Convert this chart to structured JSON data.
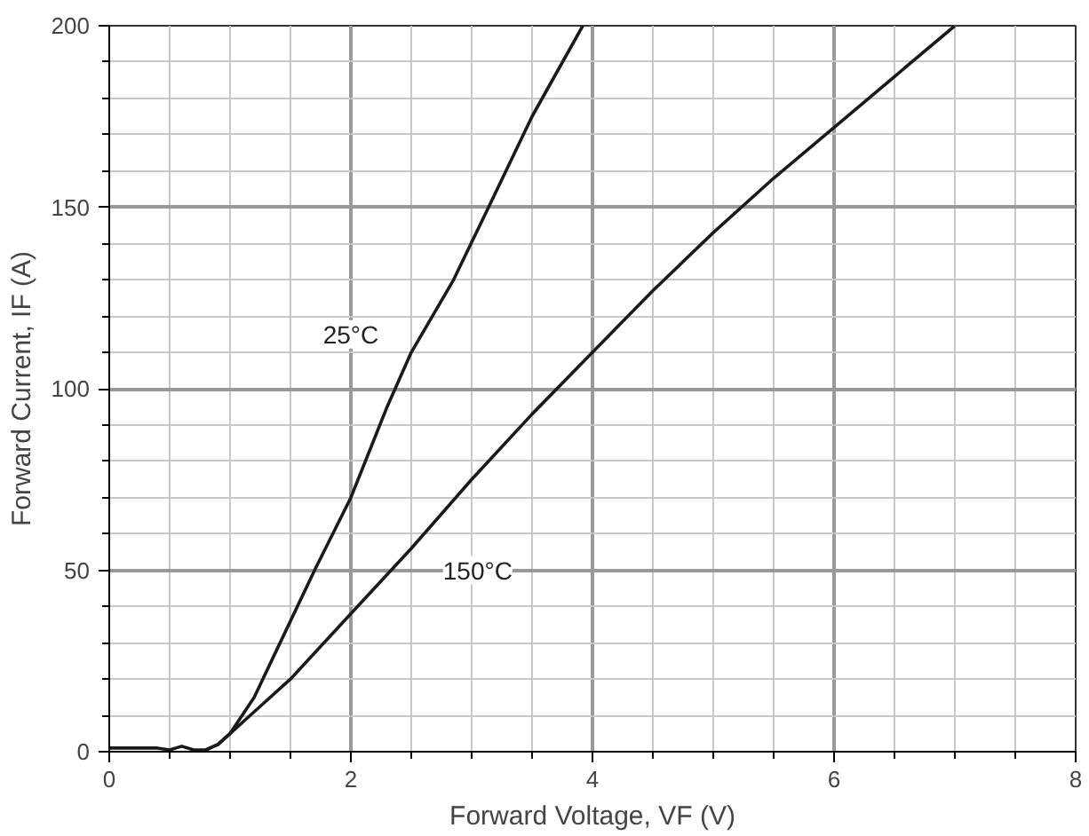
{
  "chart_data": {
    "type": "line",
    "xlabel": "Forward Voltage, VF (V)",
    "ylabel": "Forward Current, IF (A)",
    "xlim": [
      0,
      8
    ],
    "ylim": [
      0,
      200
    ],
    "xticks": [
      0,
      {
        "value": 0.5,
        "label": null
      },
      {
        "value": 1,
        "label": null
      },
      {
        "value": 1.5,
        "label": null
      },
      2,
      {
        "value": 2.5,
        "label": null
      },
      {
        "value": 3,
        "label": null
      },
      {
        "value": 3.5,
        "label": null
      },
      4,
      {
        "value": 4.5,
        "label": null
      },
      {
        "value": 5,
        "label": null
      },
      {
        "value": 5.5,
        "label": null
      },
      6,
      {
        "value": 6.5,
        "label": null
      },
      {
        "value": 7,
        "label": null
      },
      {
        "value": 7.5,
        "label": null
      },
      8
    ],
    "yticks": [
      0,
      {
        "value": 10,
        "label": null
      },
      {
        "value": 20,
        "label": null
      },
      {
        "value": 30,
        "label": null
      },
      {
        "value": 40,
        "label": null
      },
      50,
      {
        "value": 60,
        "label": null
      },
      {
        "value": 70,
        "label": null
      },
      {
        "value": 80,
        "label": null
      },
      {
        "value": 90,
        "label": null
      },
      100,
      {
        "value": 110,
        "label": null
      },
      {
        "value": 120,
        "label": null
      },
      {
        "value": 130,
        "label": null
      },
      {
        "value": 140,
        "label": null
      },
      150,
      {
        "value": 160,
        "label": null
      },
      {
        "value": 170,
        "label": null
      },
      {
        "value": 180,
        "label": null
      },
      {
        "value": 190,
        "label": null
      },
      200
    ],
    "grid": true,
    "marker": "none",
    "line_style": "solid",
    "series": [
      {
        "color": "#1a1a1a",
        "x": [
          0,
          0.4,
          0.5,
          0.6,
          0.7,
          0.8,
          0.9,
          1.0,
          1.2,
          1.4,
          1.7,
          2.0,
          2.3,
          2.5,
          2.85,
          3.14,
          3.5,
          3.92
        ],
        "values": [
          1,
          1,
          0.5,
          1.5,
          0.5,
          0.5,
          2,
          5,
          15,
          29,
          50,
          70,
          95,
          110,
          130,
          150,
          175,
          200
        ]
      },
      {
        "color": "#1a1a1a",
        "x": [
          0.8,
          0.9,
          1.0,
          1.2,
          1.5,
          2.0,
          2.5,
          3.0,
          3.5,
          4.0,
          4.5,
          5.0,
          5.5,
          6.0,
          6.5,
          7.0
        ],
        "values": [
          0.5,
          2,
          5,
          11,
          20,
          38,
          56,
          75,
          93,
          110,
          127,
          143,
          158,
          172,
          186,
          200
        ]
      }
    ],
    "annotations": [
      {
        "text": "25°C",
        "x": 2.0,
        "y": 115
      },
      {
        "text": "150°C",
        "x": 3.05,
        "y": 50
      }
    ]
  }
}
